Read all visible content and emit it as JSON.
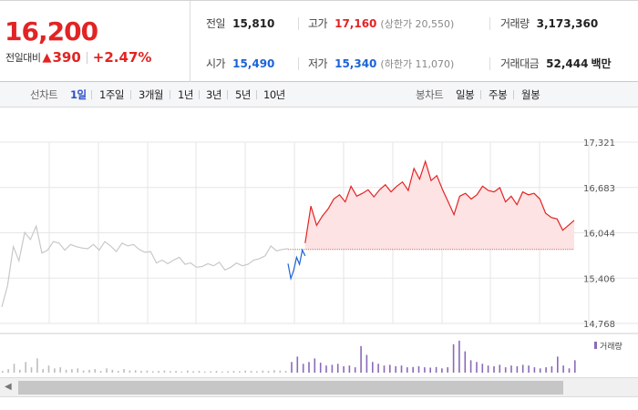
{
  "summary": {
    "current_price": "16,200",
    "change_label": "전일대비",
    "change_arrow": "▲",
    "change_amount": "390",
    "change_pct": "+2.47%",
    "prev_close_label": "전일",
    "prev_close": "15,810",
    "open_label": "시가",
    "open": "15,490",
    "high_label": "고가",
    "high": "17,160",
    "upper_limit": "(상한가 20,550)",
    "low_label": "저가",
    "low": "15,340",
    "lower_limit": "(하한가 11,070)",
    "volume_label": "거래량",
    "volume": "3,173,360",
    "trade_value_label": "거래대금",
    "trade_value": "52,444",
    "trade_value_unit": "백만"
  },
  "tabs": {
    "line_label": "선차트",
    "line_tabs": [
      "1일",
      "1주일",
      "3개월",
      "1년",
      "3년",
      "5년",
      "10년"
    ],
    "active_line_tab": "1일",
    "candle_label": "봉차트",
    "candle_tabs": [
      "일봉",
      "주봉",
      "월봉"
    ]
  },
  "colors": {
    "up": "#e22424",
    "down": "#1c63d6",
    "prior_day_line": "#c8c8c8",
    "area_fill": "#fde3e3",
    "volume": "#8a6ab8",
    "grid": "#e6e6e6"
  },
  "chart_data": {
    "type": "line",
    "ylim": [
      14768,
      17321
    ],
    "yticks": [
      "17,321",
      "16,683",
      "16,044",
      "15,406",
      "14,768"
    ],
    "baseline": 15810,
    "series": [
      {
        "x": [
          0,
          0.01,
          0.02,
          0.03,
          0.04,
          0.05,
          0.06,
          0.07,
          0.08,
          0.09,
          0.1,
          0.11,
          0.12,
          0.13,
          0.14,
          0.15,
          0.16,
          0.17,
          0.18,
          0.19,
          0.2,
          0.21,
          0.22,
          0.23,
          0.24,
          0.25,
          0.26,
          0.27,
          0.28,
          0.29,
          0.3,
          0.31,
          0.32,
          0.33,
          0.34,
          0.35,
          0.36,
          0.37,
          0.38,
          0.39,
          0.4,
          0.41,
          0.42,
          0.43,
          0.44,
          0.45,
          0.46,
          0.47,
          0.48,
          0.49,
          0.5
        ],
        "values": [
          15000,
          15300,
          15850,
          15650,
          16050,
          15950,
          16140,
          15760,
          15800,
          15920,
          15900,
          15800,
          15880,
          15850,
          15830,
          15820,
          15880,
          15800,
          15920,
          15860,
          15780,
          15900,
          15860,
          15880,
          15810,
          15770,
          15780,
          15620,
          15660,
          15610,
          15660,
          15700,
          15600,
          15620,
          15560,
          15570,
          15610,
          15580,
          15630,
          15520,
          15560,
          15620,
          15580,
          15600,
          15660,
          15680,
          15720,
          15860,
          15790,
          15810,
          15820
        ]
      },
      {
        "x": [
          0.5,
          0.505,
          0.51,
          0.515,
          0.52,
          0.525,
          0.53
        ],
        "values": [
          15610,
          15400,
          15520,
          15700,
          15600,
          15800,
          15720
        ]
      },
      {
        "x": [
          0.53,
          0.54,
          0.55,
          0.56,
          0.57,
          0.58,
          0.59,
          0.6,
          0.61,
          0.62,
          0.63,
          0.64,
          0.65,
          0.66,
          0.67,
          0.68,
          0.69,
          0.7,
          0.71,
          0.72,
          0.73,
          0.74,
          0.75,
          0.76,
          0.77,
          0.78,
          0.79,
          0.8,
          0.81,
          0.82,
          0.83,
          0.84,
          0.85,
          0.86,
          0.87,
          0.88,
          0.89,
          0.9,
          0.91,
          0.92,
          0.93,
          0.94,
          0.95,
          0.96,
          0.97,
          0.98,
          0.99,
          1.0
        ],
        "values": [
          15900,
          16420,
          16150,
          16280,
          16380,
          16520,
          16580,
          16480,
          16700,
          16560,
          16600,
          16650,
          16550,
          16650,
          16720,
          16620,
          16700,
          16760,
          16640,
          16950,
          16800,
          17050,
          16780,
          16850,
          16650,
          16480,
          16300,
          16560,
          16600,
          16520,
          16580,
          16700,
          16640,
          16620,
          16680,
          16480,
          16560,
          16440,
          16620,
          16580,
          16600,
          16520,
          16320,
          16260,
          16240,
          16080,
          16150,
          16220
        ]
      }
    ],
    "volume_legend": "거래량",
    "volume": [
      0.05,
      0.1,
      0.25,
      0.08,
      0.3,
      0.15,
      0.4,
      0.1,
      0.2,
      0.12,
      0.15,
      0.08,
      0.1,
      0.12,
      0.06,
      0.08,
      0.1,
      0.05,
      0.12,
      0.08,
      0.05,
      0.1,
      0.06,
      0.07,
      0.05,
      0.06,
      0.04,
      0.05,
      0.06,
      0.04,
      0.05,
      0.03,
      0.06,
      0.04,
      0.05,
      0.03,
      0.04,
      0.05,
      0.03,
      0.04,
      0.05,
      0.04,
      0.06,
      0.05,
      0.04,
      0.06,
      0.05,
      0.07,
      0.06,
      0.05,
      0.3,
      0.45,
      0.25,
      0.3,
      0.4,
      0.28,
      0.2,
      0.22,
      0.25,
      0.18,
      0.2,
      0.15,
      0.75,
      0.5,
      0.3,
      0.25,
      0.2,
      0.22,
      0.18,
      0.2,
      0.15,
      0.16,
      0.18,
      0.15,
      0.14,
      0.16,
      0.12,
      0.15,
      0.8,
      0.9,
      0.6,
      0.35,
      0.3,
      0.25,
      0.2,
      0.18,
      0.22,
      0.15,
      0.2,
      0.18,
      0.22,
      0.2,
      0.15,
      0.12,
      0.15,
      0.18,
      0.45,
      0.2,
      0.12,
      0.35
    ]
  }
}
